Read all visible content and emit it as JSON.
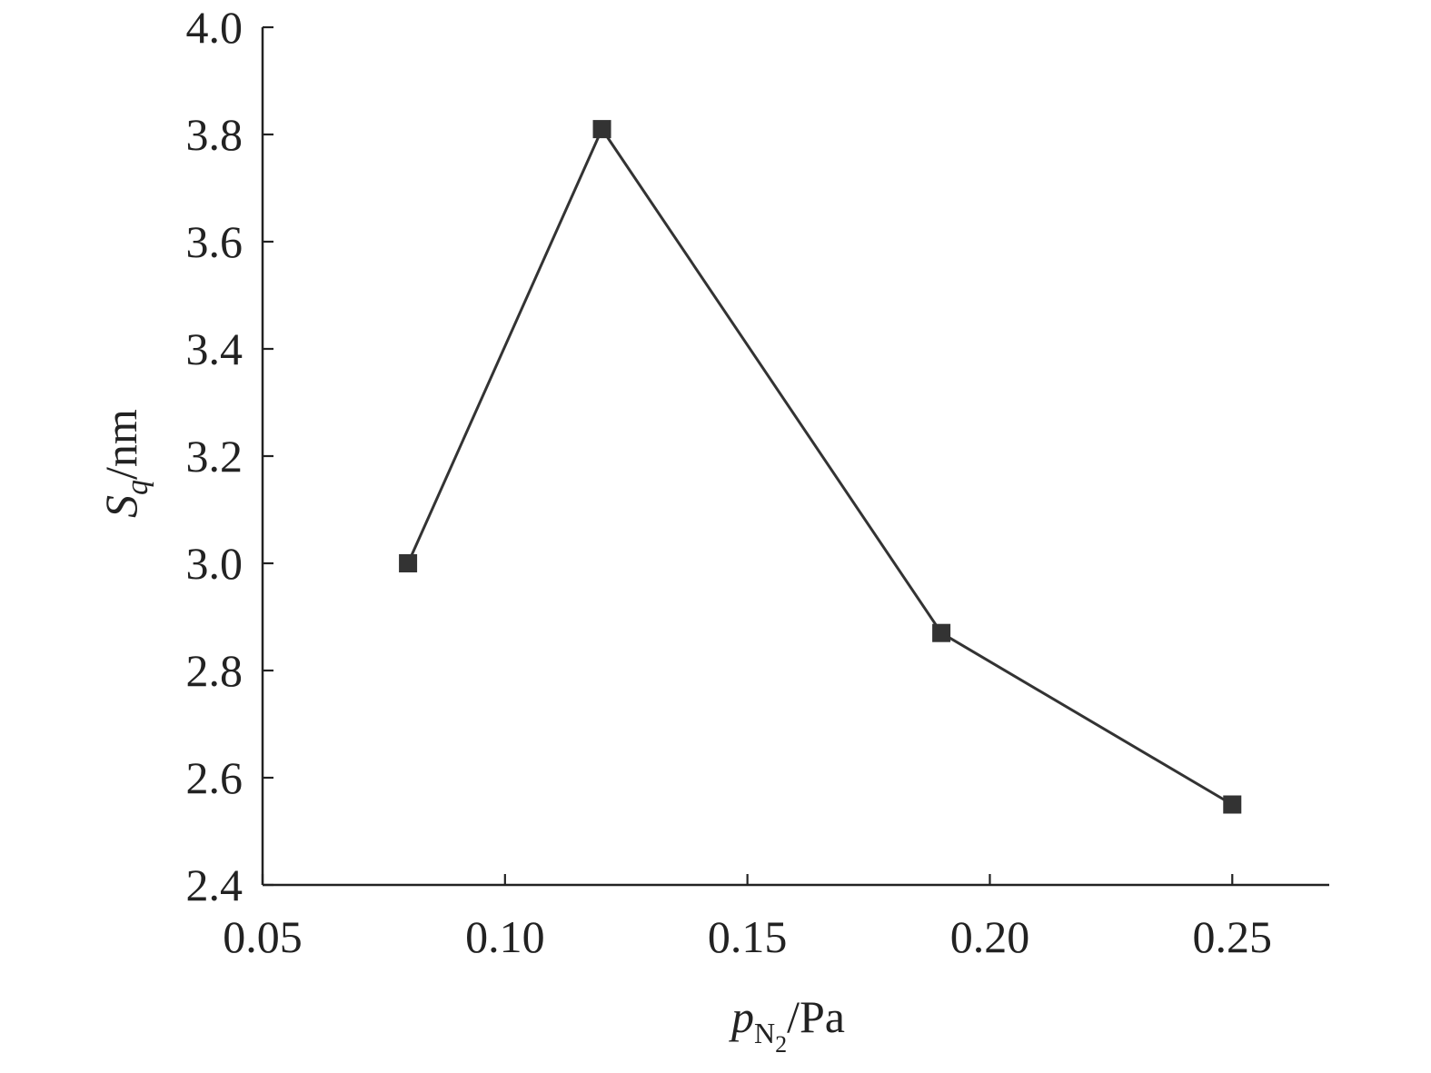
{
  "chart_data": {
    "type": "line",
    "title": "",
    "xlabel": {
      "main": "p",
      "sub": "N",
      "subsub": "2",
      "unit": "/Pa"
    },
    "ylabel": {
      "main": "S",
      "sub": "q",
      "unit": "/nm"
    },
    "xlim": [
      0.05,
      0.27
    ],
    "ylim": [
      2.4,
      4.0
    ],
    "xticks": [
      0.05,
      0.1,
      0.15,
      0.2,
      0.25
    ],
    "xtick_labels": [
      "0.05",
      "0.10",
      "0.15",
      "0.20",
      "0.25"
    ],
    "yticks": [
      2.4,
      2.6,
      2.8,
      3.0,
      3.2,
      3.4,
      3.6,
      3.8,
      4.0
    ],
    "ytick_labels": [
      "2.4",
      "2.6",
      "2.8",
      "3.0",
      "3.2",
      "3.4",
      "3.6",
      "3.8",
      "4.0"
    ],
    "grid": false,
    "legend": "none",
    "series": [
      {
        "marker": "square",
        "color": "#333333",
        "x": [
          0.08,
          0.12,
          0.19,
          0.25
        ],
        "y": [
          3.0,
          3.81,
          2.87,
          2.55
        ]
      }
    ]
  }
}
